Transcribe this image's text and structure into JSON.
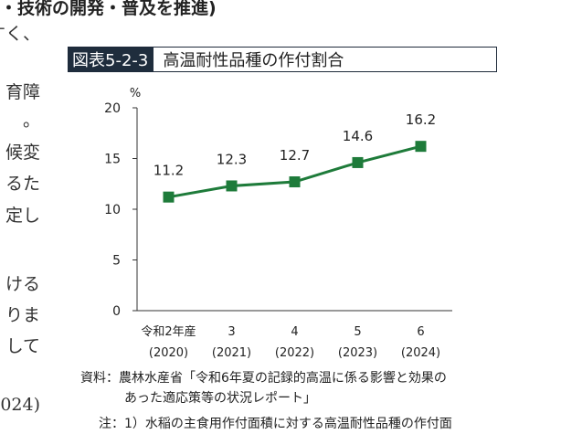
{
  "section_heading": "・技術の開発・普及を推進)",
  "left_text_fragments": [
    "すく、",
    "育障",
    "。",
    "候変",
    "るた",
    "定し",
    "ける",
    "りま",
    "して",
    "024)"
  ],
  "figure": {
    "label": "図表5-2-3",
    "title": "高温耐性品種の作付割合"
  },
  "chart_data": {
    "type": "line",
    "categories": [
      [
        "令和2年産",
        "(2020)"
      ],
      [
        "3",
        "(2021)"
      ],
      [
        "4",
        "(2022)"
      ],
      [
        "5",
        "(2023)"
      ],
      [
        "6",
        "(2024)"
      ]
    ],
    "series": [
      {
        "values": [
          11.2,
          12.3,
          12.7,
          14.6,
          16.2
        ]
      }
    ],
    "data_labels": [
      "11.2",
      "12.3",
      "12.7",
      "14.6",
      "16.2"
    ],
    "ylabel": "%",
    "ylim": [
      0,
      20
    ],
    "yticks": [
      0,
      5,
      10,
      15,
      20
    ],
    "grid": false,
    "line_color": "#1e7b3a"
  },
  "source": {
    "line1": "資料：農林水産省「令和6年夏の記録的高温に係る影響と効果の",
    "line2": "あった適応策等の状況レポート」",
    "note": "注：1）水稲の主食用作付面積に対する高温耐性品種の作付面"
  }
}
